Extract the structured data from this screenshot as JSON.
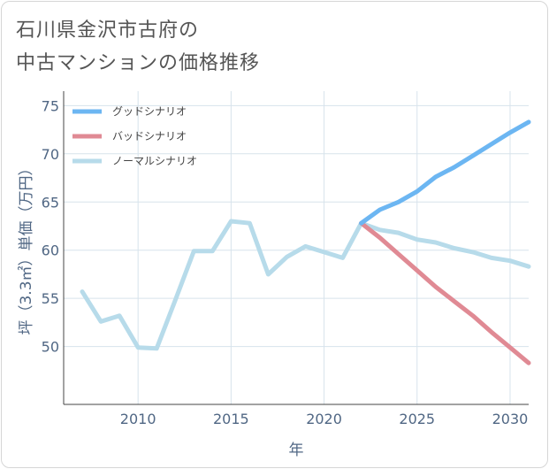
{
  "title_line1": "石川県金沢市古府の",
  "title_line2": "中古マンションの価格推移",
  "chart_data": {
    "type": "line",
    "xlabel": "年",
    "ylabel": "坪（3.3㎡）単価（万円）",
    "xlim": [
      2006,
      2031
    ],
    "ylim": [
      44,
      76.5
    ],
    "xticks": [
      2010,
      2015,
      2020,
      2025,
      2030
    ],
    "yticks": [
      50,
      55,
      60,
      65,
      70,
      75
    ],
    "legend_position": "top-left",
    "series": [
      {
        "name": "グッドシナリオ",
        "color": "#6cb6f2",
        "x": [
          2022,
          2023,
          2024,
          2025,
          2026,
          2027,
          2028,
          2029,
          2030,
          2031
        ],
        "y": [
          62.8,
          64.2,
          65.0,
          66.1,
          67.6,
          68.6,
          69.8,
          71.0,
          72.2,
          73.3
        ]
      },
      {
        "name": "バッドシナリオ",
        "color": "#e08a94",
        "x": [
          2022,
          2023,
          2024,
          2025,
          2026,
          2027,
          2028,
          2029,
          2030,
          2031
        ],
        "y": [
          62.8,
          61.3,
          59.6,
          57.9,
          56.2,
          54.7,
          53.2,
          51.5,
          49.9,
          48.3
        ]
      },
      {
        "name": "ノーマルシナリオ",
        "color": "#b7dbea",
        "x": [
          2007,
          2008,
          2009,
          2010,
          2011,
          2012,
          2013,
          2014,
          2015,
          2016,
          2017,
          2018,
          2019,
          2020,
          2021,
          2022,
          2023,
          2024,
          2025,
          2026,
          2027,
          2028,
          2029,
          2030,
          2031
        ],
        "y": [
          55.7,
          52.6,
          53.2,
          49.9,
          49.8,
          54.8,
          59.9,
          59.9,
          63.0,
          62.8,
          57.5,
          59.3,
          60.4,
          59.8,
          59.2,
          62.8,
          62.1,
          61.8,
          61.1,
          60.8,
          60.2,
          59.8,
          59.2,
          58.9,
          58.3
        ]
      }
    ]
  }
}
